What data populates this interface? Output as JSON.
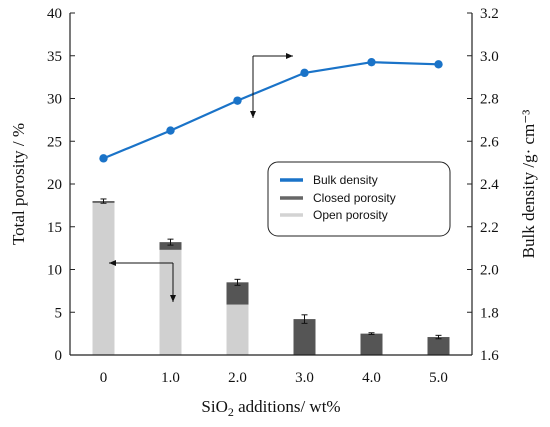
{
  "chart_data": {
    "type": "bar+line",
    "categories": [
      "0",
      "1.0",
      "2.0",
      "3.0",
      "4.0",
      "5.0"
    ],
    "x_values": [
      0,
      1,
      2,
      3,
      4,
      5
    ],
    "xlabel": "SiO2 additions/ wt%",
    "xlabel_parts": {
      "base": "SiO",
      "sub": "2",
      "rest": " additions/ wt%"
    },
    "ylabel_left": "Total porosity / %",
    "ylabel_right": "Bulk density /g· cm⁻³",
    "ylim_left": [
      0,
      40
    ],
    "ylim_right": [
      1.6,
      3.2
    ],
    "yticks_left": [
      "0",
      "5",
      "10",
      "15",
      "20",
      "25",
      "30",
      "35",
      "40"
    ],
    "yticks_right": [
      "1.6",
      "1.8",
      "2.0",
      "2.2",
      "2.4",
      "2.6",
      "2.8",
      "3.0",
      "3.2"
    ],
    "grid": false,
    "legend_position": "center-right",
    "series": [
      {
        "name": "Bulk density",
        "type": "line",
        "axis": "right",
        "color": "#1a73c8",
        "values": [
          2.52,
          2.65,
          2.79,
          2.92,
          2.97,
          2.96
        ]
      },
      {
        "name": "Closed porosity",
        "type": "bar-stacked",
        "axis": "left",
        "color": "#555555",
        "values": [
          0.2,
          0.9,
          2.6,
          4.2,
          2.5,
          2.1
        ],
        "error": [
          0.25,
          0.35,
          0.35,
          0.5,
          0.1,
          0.2
        ]
      },
      {
        "name": "Open porosity",
        "type": "bar-stacked",
        "axis": "left",
        "color": "#d0d0d0",
        "values": [
          17.8,
          12.3,
          5.9,
          0,
          0,
          0
        ]
      }
    ],
    "legend": {
      "items": [
        {
          "label": "Bulk density",
          "color": "#1a73c8"
        },
        {
          "label": "Closed porosity",
          "color": "#666666"
        },
        {
          "label": "Open porosity",
          "color": "#d3d3d3"
        }
      ]
    }
  }
}
